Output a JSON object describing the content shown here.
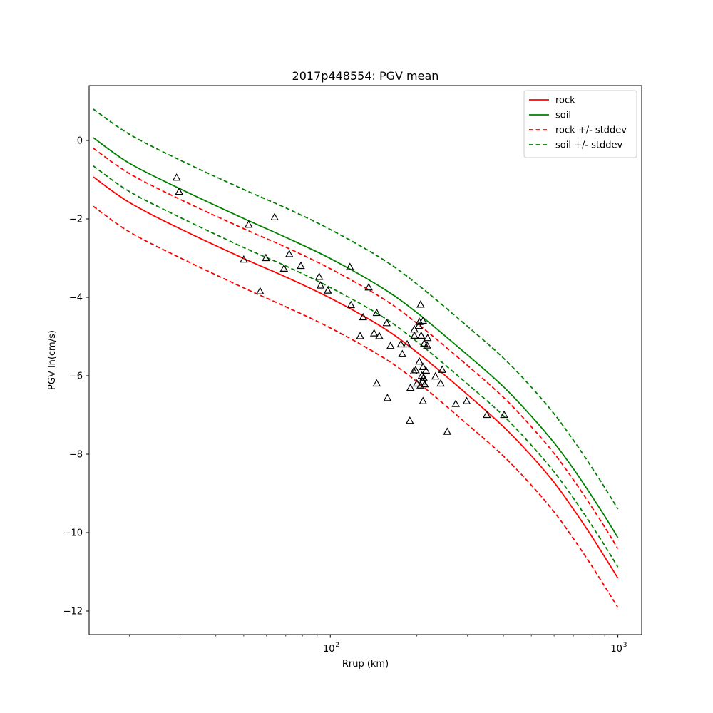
{
  "chart_data": {
    "type": "line",
    "title": "2017p448554: PGV mean",
    "xlabel": "Rrup (km)",
    "ylabel": "PGV ln(cm/s)",
    "xscale": "log",
    "xlim": [
      14.5,
      1210
    ],
    "ylim": [
      -12.6,
      1.4
    ],
    "x_ticks": [
      {
        "value": 100,
        "base": "10",
        "exp": "2"
      },
      {
        "value": 1000,
        "base": "10",
        "exp": "3"
      }
    ],
    "y_ticks": [
      {
        "value": 0,
        "label": "0"
      },
      {
        "value": -2,
        "label": "−2"
      },
      {
        "value": -4,
        "label": "−4"
      },
      {
        "value": -6,
        "label": "−6"
      },
      {
        "value": -8,
        "label": "−8"
      },
      {
        "value": -10,
        "label": "−10"
      },
      {
        "value": -12,
        "label": "−12"
      }
    ],
    "legend_position": "upper-right",
    "series": [
      {
        "name": "rock",
        "color": "#ff0000",
        "style": "solid",
        "x": [
          15,
          20,
          30,
          50,
          70,
          100,
          150,
          200,
          300,
          400,
          500,
          600,
          700,
          800,
          900,
          1000
        ],
        "y": [
          -0.93,
          -1.58,
          -2.25,
          -3.01,
          -3.48,
          -4.02,
          -4.74,
          -5.4,
          -6.48,
          -7.3,
          -8.04,
          -8.72,
          -9.4,
          -10.03,
          -10.62,
          -11.16
        ]
      },
      {
        "name": "soil",
        "color": "#008000",
        "style": "solid",
        "x": [
          15,
          20,
          30,
          50,
          70,
          100,
          150,
          200,
          300,
          400,
          500,
          600,
          700,
          800,
          900,
          1000
        ],
        "y": [
          0.07,
          -0.58,
          -1.23,
          -1.99,
          -2.47,
          -3.01,
          -3.74,
          -4.39,
          -5.47,
          -6.28,
          -7.03,
          -7.71,
          -8.37,
          -9.0,
          -9.58,
          -10.13
        ]
      },
      {
        "name": "rock +/- stddev",
        "color": "#ff0000",
        "style": "dashed",
        "x": [
          15,
          20,
          30,
          50,
          70,
          100,
          150,
          200,
          300,
          400,
          500,
          600,
          700,
          800,
          900,
          1000
        ],
        "y": [
          -0.2,
          -0.84,
          -1.5,
          -2.25,
          -2.72,
          -3.27,
          -4.0,
          -4.66,
          -5.74,
          -6.55,
          -7.3,
          -7.98,
          -8.65,
          -9.28,
          -9.86,
          -10.41
        ]
      },
      {
        "name": "",
        "color": "#ff0000",
        "style": "dashed",
        "x": [
          15,
          20,
          30,
          50,
          70,
          100,
          150,
          200,
          300,
          400,
          500,
          600,
          700,
          800,
          900,
          1000
        ],
        "y": [
          -1.68,
          -2.33,
          -2.99,
          -3.76,
          -4.24,
          -4.78,
          -5.5,
          -6.15,
          -7.24,
          -8.05,
          -8.79,
          -9.47,
          -10.15,
          -10.78,
          -11.37,
          -11.91
        ]
      },
      {
        "name": "soil +/- stddev",
        "color": "#008000",
        "style": "dashed",
        "x": [
          15,
          20,
          30,
          50,
          70,
          100,
          150,
          200,
          300,
          400,
          500,
          600,
          700,
          800,
          900,
          1000
        ],
        "y": [
          0.8,
          0.16,
          -0.5,
          -1.25,
          -1.72,
          -2.27,
          -3.0,
          -3.66,
          -4.74,
          -5.55,
          -6.29,
          -6.97,
          -7.64,
          -8.27,
          -8.85,
          -9.4
        ]
      },
      {
        "name": "",
        "color": "#008000",
        "style": "dashed",
        "x": [
          15,
          20,
          30,
          50,
          70,
          100,
          150,
          200,
          300,
          400,
          500,
          600,
          700,
          800,
          900,
          1000
        ],
        "y": [
          -0.65,
          -1.3,
          -1.96,
          -2.73,
          -3.2,
          -3.75,
          -4.47,
          -5.13,
          -6.21,
          -7.02,
          -7.77,
          -8.45,
          -9.12,
          -9.75,
          -10.33,
          -10.88
        ]
      }
    ],
    "observations": {
      "marker": "triangle",
      "points": [
        [
          29.2,
          -0.95
        ],
        [
          29.8,
          -1.31
        ],
        [
          52,
          -2.15
        ],
        [
          64,
          -1.96
        ],
        [
          50,
          -3.04
        ],
        [
          59.7,
          -3.0
        ],
        [
          57,
          -3.85
        ],
        [
          69,
          -3.27
        ],
        [
          72,
          -2.9
        ],
        [
          79,
          -3.2
        ],
        [
          91.5,
          -3.48
        ],
        [
          92.5,
          -3.7
        ],
        [
          98,
          -3.83
        ],
        [
          117,
          -3.23
        ],
        [
          118,
          -4.2
        ],
        [
          127,
          -4.99
        ],
        [
          130,
          -4.51
        ],
        [
          136,
          -3.75
        ],
        [
          142,
          -4.92
        ],
        [
          145,
          -4.4
        ],
        [
          148,
          -4.99
        ],
        [
          145,
          -6.2
        ],
        [
          157,
          -4.66
        ],
        [
          158,
          -6.57
        ],
        [
          162,
          -5.24
        ],
        [
          176,
          -5.2
        ],
        [
          178,
          -5.45
        ],
        [
          185,
          -5.2
        ],
        [
          189,
          -7.15
        ],
        [
          190,
          -6.31
        ],
        [
          195,
          -5.89
        ],
        [
          196,
          -4.98
        ],
        [
          196,
          -4.82
        ],
        [
          198,
          -5.86
        ],
        [
          200,
          -6.2
        ],
        [
          203,
          -4.73
        ],
        [
          204,
          -4.63
        ],
        [
          204,
          -5.64
        ],
        [
          206,
          -4.19
        ],
        [
          206,
          -6.25
        ],
        [
          207,
          -4.98
        ],
        [
          208,
          -6.0
        ],
        [
          209,
          -6.15
        ],
        [
          210,
          -4.6
        ],
        [
          210,
          -5.78
        ],
        [
          210,
          -6.65
        ],
        [
          211,
          -6.05
        ],
        [
          212,
          -5.18
        ],
        [
          213,
          -6.22
        ],
        [
          215,
          -5.87
        ],
        [
          217,
          -5.23
        ],
        [
          218,
          -5.04
        ],
        [
          232,
          -6.02
        ],
        [
          242,
          -6.2
        ],
        [
          245,
          -5.85
        ],
        [
          255,
          -7.43
        ],
        [
          273,
          -6.72
        ],
        [
          298,
          -6.65
        ],
        [
          350,
          -7.0
        ],
        [
          402,
          -7.0
        ]
      ]
    }
  }
}
